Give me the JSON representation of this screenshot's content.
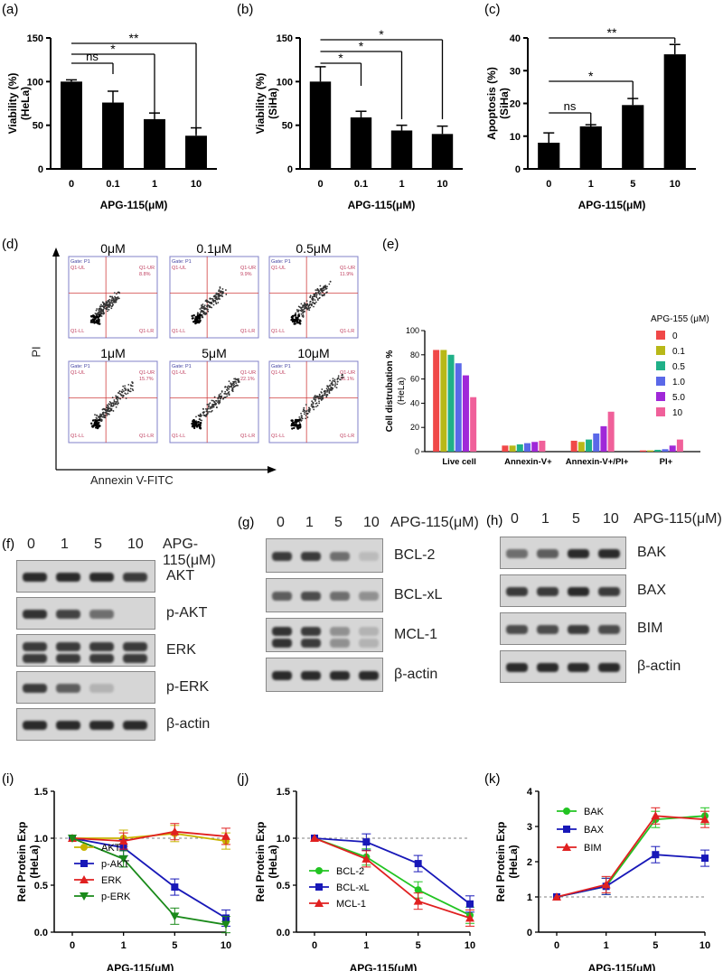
{
  "figure": {
    "panel_letters": [
      "(a)",
      "(b)",
      "(c)",
      "(d)",
      "(e)",
      "(f)",
      "(g)",
      "(h)",
      "(i)",
      "(j)",
      "(k)"
    ]
  },
  "chart_data": [
    {
      "id": "a",
      "type": "bar",
      "title": "",
      "categories": [
        "0",
        "0.1",
        "1",
        "10"
      ],
      "values": [
        100,
        76,
        57,
        38
      ],
      "errors": [
        2,
        13,
        7,
        9
      ],
      "xlabel": "APG-115(μM)",
      "ylabel": "Viability (%)",
      "ylabel2": "(HeLa)",
      "ylim": [
        0,
        150
      ],
      "yticks": [
        "0",
        "50",
        "100",
        "150"
      ],
      "significance": [
        "ns",
        "*",
        "**"
      ]
    },
    {
      "id": "b",
      "type": "bar",
      "title": "",
      "categories": [
        "0",
        "0.1",
        "1",
        "10"
      ],
      "values": [
        100,
        59,
        44,
        40
      ],
      "errors": [
        17,
        7,
        6,
        9
      ],
      "xlabel": "APG-115(μM)",
      "ylabel": "Viability (%)",
      "ylabel2": "(SiHa)",
      "ylim": [
        0,
        150
      ],
      "yticks": [
        "0",
        "50",
        "100",
        "150"
      ],
      "significance": [
        "*",
        "*",
        "*"
      ]
    },
    {
      "id": "c",
      "type": "bar",
      "title": "",
      "categories": [
        "0",
        "1",
        "5",
        "10"
      ],
      "values": [
        8,
        13,
        19.5,
        35
      ],
      "errors": [
        3,
        0.5,
        2,
        3
      ],
      "xlabel": "APG-115(μM)",
      "ylabel": "Apoptosis (%)",
      "ylabel2": "(SiHa)",
      "ylim": [
        0,
        40
      ],
      "yticks": [
        "0",
        "10",
        "20",
        "30",
        "40"
      ],
      "significance": [
        "ns",
        "*",
        "**"
      ]
    },
    {
      "id": "e",
      "type": "bar",
      "title": "",
      "categories": [
        "Live cell",
        "Annexin-V+",
        "Annexin-V+/PI+",
        "PI+"
      ],
      "legend_title": "APG-155 (μM)",
      "series": [
        {
          "name": "0",
          "color": "#f04848",
          "values": [
            84,
            5,
            9,
            1
          ]
        },
        {
          "name": "0.1",
          "color": "#b8b818",
          "values": [
            84,
            5,
            8,
            1
          ]
        },
        {
          "name": "0.5",
          "color": "#20b088",
          "values": [
            80,
            6,
            10,
            1.5
          ]
        },
        {
          "name": "1.0",
          "color": "#5a68e8",
          "values": [
            73,
            7,
            15,
            2
          ]
        },
        {
          "name": "5.0",
          "color": "#a028d8",
          "values": [
            63,
            8,
            21,
            5
          ]
        },
        {
          "name": "10",
          "color": "#f0609a",
          "values": [
            45,
            9,
            33,
            10
          ]
        }
      ],
      "xlabel": "",
      "ylabel": "Cell distrubation %",
      "ylabel2": "(HeLa)",
      "ylim": [
        0,
        100
      ],
      "yticks": [
        "0",
        "20",
        "40",
        "60",
        "80",
        "100"
      ]
    },
    {
      "id": "i",
      "type": "line",
      "title": "",
      "x": [
        "0",
        "1",
        "5",
        "10"
      ],
      "series": [
        {
          "name": "AKT",
          "color": "#c8b400",
          "marker": "circle",
          "values": [
            1.0,
            1.0,
            1.05,
            0.97
          ]
        },
        {
          "name": "p-AKT",
          "color": "#1818b8",
          "marker": "square",
          "values": [
            1.0,
            0.9,
            0.48,
            0.15
          ]
        },
        {
          "name": "ERK",
          "color": "#e02020",
          "marker": "triangle",
          "values": [
            1.0,
            0.97,
            1.07,
            1.02
          ]
        },
        {
          "name": "p-ERK",
          "color": "#1a8a1a",
          "marker": "triangle-down",
          "values": [
            1.0,
            0.78,
            0.17,
            0.08
          ]
        }
      ],
      "xlabel": "APG-115(μM)",
      "ylabel": "Rel Protein Exp",
      "ylabel2": "(HeLa)",
      "ylim": [
        0,
        1.5
      ],
      "yticks": [
        "0.0",
        "0.5",
        "1.0",
        "1.5"
      ]
    },
    {
      "id": "j",
      "type": "line",
      "title": "",
      "x": [
        "0",
        "1",
        "5",
        "10"
      ],
      "series": [
        {
          "name": "BCL-2",
          "color": "#22c422",
          "marker": "circle",
          "values": [
            1.0,
            0.8,
            0.45,
            0.18
          ]
        },
        {
          "name": "BCL-xL",
          "color": "#1818b8",
          "marker": "square",
          "values": [
            1.0,
            0.96,
            0.73,
            0.3
          ]
        },
        {
          "name": "MCL-1",
          "color": "#e02020",
          "marker": "triangle",
          "values": [
            1.0,
            0.78,
            0.33,
            0.15
          ]
        }
      ],
      "xlabel": "APG-115(μM)",
      "ylabel": "Rel Protein Exp",
      "ylabel2": "(HeLa)",
      "ylim": [
        0,
        1.5
      ],
      "yticks": [
        "0.0",
        "0.5",
        "1.0",
        "1.5"
      ]
    },
    {
      "id": "k",
      "type": "line",
      "title": "",
      "x": [
        "0",
        "1",
        "5",
        "10"
      ],
      "series": [
        {
          "name": "BAK",
          "color": "#22c422",
          "marker": "circle",
          "values": [
            1.0,
            1.3,
            3.2,
            3.3
          ]
        },
        {
          "name": "BAX",
          "color": "#1818b8",
          "marker": "square",
          "values": [
            1.0,
            1.3,
            2.2,
            2.1
          ]
        },
        {
          "name": "BIM",
          "color": "#e02020",
          "marker": "triangle",
          "values": [
            1.0,
            1.35,
            3.3,
            3.2
          ]
        }
      ],
      "xlabel": "APG-115(μM)",
      "ylabel": "Rel Protein Exp",
      "ylabel2": "(HeLa)",
      "ylim": [
        0,
        4
      ],
      "yticks": [
        "0",
        "1",
        "2",
        "3",
        "4"
      ]
    }
  ],
  "flow": {
    "concentrations": [
      "0μM",
      "0.1μM",
      "0.5μM",
      "1μM",
      "5μM",
      "10μM"
    ],
    "gate": "Gate: P1",
    "quadrants": [
      "Q1-UL",
      "Q1-UR",
      "Q1-LL",
      "Q1-LR"
    ],
    "ur_values": [
      "8.8%",
      "9.9%",
      "11.9%",
      "15.7%",
      "22.1%",
      "36.1%"
    ],
    "x_axis": "Annexin  V-FITC",
    "y_axis": "PI"
  },
  "western": {
    "f": {
      "doses": [
        "0",
        "1",
        "5",
        "10"
      ],
      "drug": "APG-115(μM)",
      "proteins": [
        "AKT",
        "p-AKT",
        "ERK",
        "p-ERK",
        "β-actin"
      ]
    },
    "g": {
      "doses": [
        "0",
        "1",
        "5",
        "10"
      ],
      "drug": "APG-115(μM)",
      "proteins": [
        "BCL-2",
        "BCL-xL",
        "MCL-1",
        "β-actin"
      ]
    },
    "h": {
      "doses": [
        "0",
        "1",
        "5",
        "10"
      ],
      "drug": "APG-115(μM)",
      "proteins": [
        "BAK",
        "BAX",
        "BIM",
        "β-actin"
      ]
    }
  }
}
